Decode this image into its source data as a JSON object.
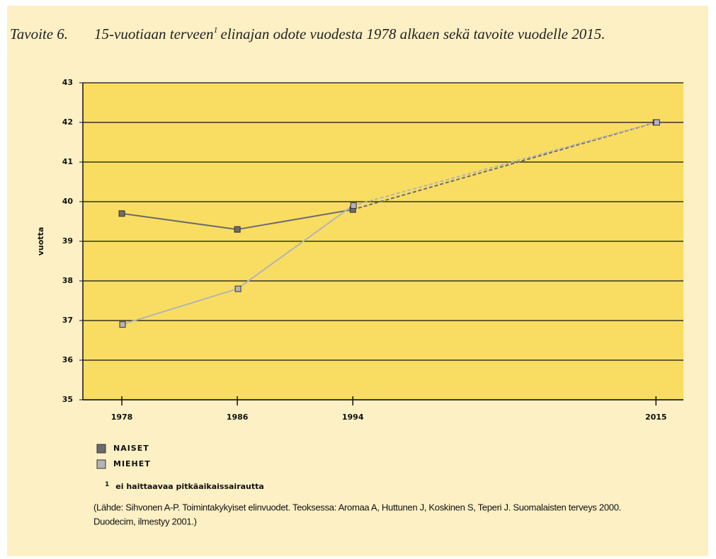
{
  "chart_data": {
    "type": "line",
    "title_number": "Tavoite 6.",
    "title": "15-vuotiaan terveen",
    "title_sup": "1",
    "title_rest": "elinajan odote vuodesta 1978 alkaen sekä tavoite vuodelle 2015.",
    "y_label": "vuotta",
    "x": [
      1978,
      1986,
      1994,
      2015
    ],
    "series": [
      {
        "name": "NAISET",
        "color": "#6b6b6b",
        "values": [
          39.7,
          39.3,
          39.8,
          42
        ]
      },
      {
        "name": "MIEHET",
        "color": "#b4b4b4",
        "values": [
          36.9,
          37.8,
          39.9,
          42
        ]
      }
    ],
    "dashed_last_segment": true,
    "xlim": [
      1975.3,
      2016.9
    ],
    "xticks": [
      1978,
      1986,
      1994,
      2015
    ],
    "ylim": [
      35,
      43
    ],
    "yticks": [
      35,
      36,
      37,
      38,
      39,
      40,
      41,
      42,
      43
    ],
    "grid": true,
    "footnote_mark": "1",
    "footnote": "ei haittaavaa pitkäaikaissairautta",
    "source": [
      "(Lähde: Sihvonen A-P. Toimintakykyiset elinvuodet. Teoksessa: Aromaa A, Huttunen J, Koskinen S, Teperi J. Suomalaisten terveys 2000.",
      "Duodecim, ilmestyy 2001.)"
    ]
  }
}
